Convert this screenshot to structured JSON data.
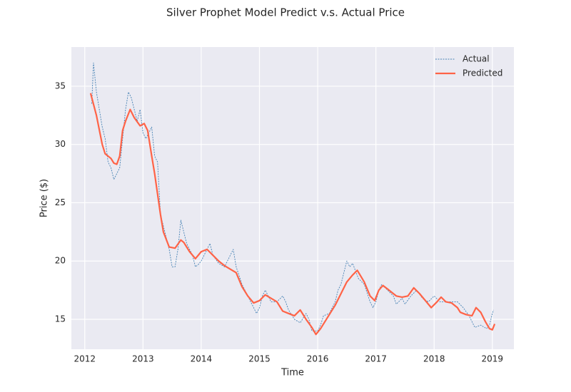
{
  "chart_data": {
    "type": "line",
    "title": "Silver Prophet Model Predict v.s. Actual Price",
    "x_label": "Time",
    "y_label": "Price ($)",
    "xlim": [
      2011.77,
      2019.37
    ],
    "xticks": [
      2012,
      2013,
      2014,
      2015,
      2016,
      2017,
      2018,
      2019
    ],
    "ylim": [
      12.43,
      38.36
    ],
    "yticks": [
      15,
      20,
      25,
      30,
      35
    ],
    "grid": true,
    "legend": "upper right",
    "series": [
      {
        "name": "Actual",
        "color": "#4682b4",
        "dashed": true,
        "x": [
          2012.12,
          2012.15,
          2012.2,
          2012.25,
          2012.3,
          2012.35,
          2012.4,
          2012.45,
          2012.5,
          2012.55,
          2012.6,
          2012.65,
          2012.7,
          2012.75,
          2012.8,
          2012.85,
          2012.9,
          2012.95,
          2013.0,
          2013.05,
          2013.1,
          2013.15,
          2013.2,
          2013.25,
          2013.3,
          2013.35,
          2013.4,
          2013.45,
          2013.5,
          2013.55,
          2013.6,
          2013.65,
          2013.7,
          2013.75,
          2013.8,
          2013.85,
          2013.9,
          2013.95,
          2014.0,
          2014.1,
          2014.15,
          2014.2,
          2014.3,
          2014.4,
          2014.5,
          2014.55,
          2014.6,
          2014.7,
          2014.8,
          2014.9,
          2014.95,
          2015.0,
          2015.05,
          2015.1,
          2015.2,
          2015.3,
          2015.4,
          2015.45,
          2015.5,
          2015.6,
          2015.7,
          2015.8,
          2015.85,
          2015.9,
          2016.0,
          2016.05,
          2016.1,
          2016.2,
          2016.3,
          2016.35,
          2016.4,
          2016.5,
          2016.55,
          2016.6,
          2016.7,
          2016.8,
          2016.9,
          2016.95,
          2017.0,
          2017.05,
          2017.1,
          2017.2,
          2017.3,
          2017.35,
          2017.45,
          2017.5,
          2017.6,
          2017.7,
          2017.8,
          2017.9,
          2018.0,
          2018.1,
          2018.2,
          2018.3,
          2018.4,
          2018.5,
          2018.6,
          2018.65,
          2018.7,
          2018.8,
          2018.9,
          2018.95,
          2019.0,
          2019.02
        ],
        "values": [
          33.5,
          37.0,
          34.5,
          33,
          31.5,
          30.5,
          28.5,
          28,
          27,
          27.5,
          28,
          30.5,
          33,
          34.5,
          34,
          33,
          32,
          33,
          31,
          30.5,
          31,
          31.5,
          29,
          28.5,
          24,
          23,
          22,
          21,
          19.5,
          19.5,
          21,
          23.5,
          22.5,
          21.5,
          21,
          20.5,
          19.5,
          19.7,
          20,
          21,
          21.5,
          20.5,
          19.8,
          19.5,
          20.5,
          21,
          19.5,
          18,
          17,
          16,
          15.5,
          16,
          17,
          17.5,
          16.5,
          16.5,
          17,
          16.5,
          15.8,
          15,
          14.7,
          15.5,
          15,
          14,
          14,
          14.5,
          15.3,
          15.5,
          16.5,
          17.5,
          18,
          20,
          19.5,
          19.8,
          18.5,
          18,
          16.5,
          16,
          16.5,
          17.5,
          18,
          17.5,
          17,
          16.3,
          16.8,
          16.3,
          17,
          17.5,
          16.8,
          16.5,
          17,
          16.5,
          16.5,
          16.5,
          16.5,
          16,
          15.3,
          14.8,
          14.3,
          14.5,
          14.2,
          14.5,
          15.5,
          15.8
        ]
      },
      {
        "name": "Predicted",
        "color": "#ff6347",
        "dashed": false,
        "x": [
          2012.1,
          2012.2,
          2012.3,
          2012.35,
          2012.45,
          2012.5,
          2012.55,
          2012.6,
          2012.65,
          2012.7,
          2012.78,
          2012.85,
          2012.95,
          2013.02,
          2013.08,
          2013.15,
          2013.2,
          2013.3,
          2013.35,
          2013.45,
          2013.55,
          2013.65,
          2013.7,
          2013.8,
          2013.9,
          2014.0,
          2014.1,
          2014.2,
          2014.3,
          2014.4,
          2014.5,
          2014.6,
          2014.7,
          2014.8,
          2014.9,
          2015.0,
          2015.1,
          2015.2,
          2015.3,
          2015.4,
          2015.5,
          2015.6,
          2015.7,
          2015.8,
          2015.9,
          2015.97,
          2016.05,
          2016.15,
          2016.3,
          2016.4,
          2016.5,
          2016.6,
          2016.68,
          2016.8,
          2016.9,
          2016.98,
          2017.05,
          2017.12,
          2017.2,
          2017.35,
          2017.45,
          2017.55,
          2017.65,
          2017.75,
          2017.85,
          2017.95,
          2018.05,
          2018.12,
          2018.2,
          2018.3,
          2018.4,
          2018.45,
          2018.55,
          2018.65,
          2018.72,
          2018.8,
          2018.88,
          2018.95,
          2019.0,
          2019.04
        ],
        "values": [
          34.4,
          32.5,
          30,
          29.2,
          28.8,
          28.4,
          28.3,
          29,
          31.2,
          32,
          33,
          32.3,
          31.6,
          31.8,
          31.2,
          29,
          27.5,
          24,
          22.5,
          21.2,
          21.1,
          21.8,
          21.6,
          20.8,
          20.2,
          20.8,
          21,
          20.5,
          20,
          19.6,
          19.3,
          19,
          17.8,
          17,
          16.4,
          16.6,
          17.1,
          16.8,
          16.5,
          15.7,
          15.5,
          15.3,
          15.8,
          15,
          14.3,
          13.7,
          14.2,
          15,
          16.2,
          17.2,
          18.2,
          18.8,
          19.2,
          18.2,
          17,
          16.6,
          17.5,
          17.9,
          17.6,
          17,
          16.9,
          17,
          17.7,
          17.2,
          16.6,
          16,
          16.5,
          16.9,
          16.5,
          16.4,
          16,
          15.6,
          15.4,
          15.3,
          16,
          15.6,
          14.8,
          14.2,
          14.1,
          14.6
        ]
      }
    ]
  }
}
